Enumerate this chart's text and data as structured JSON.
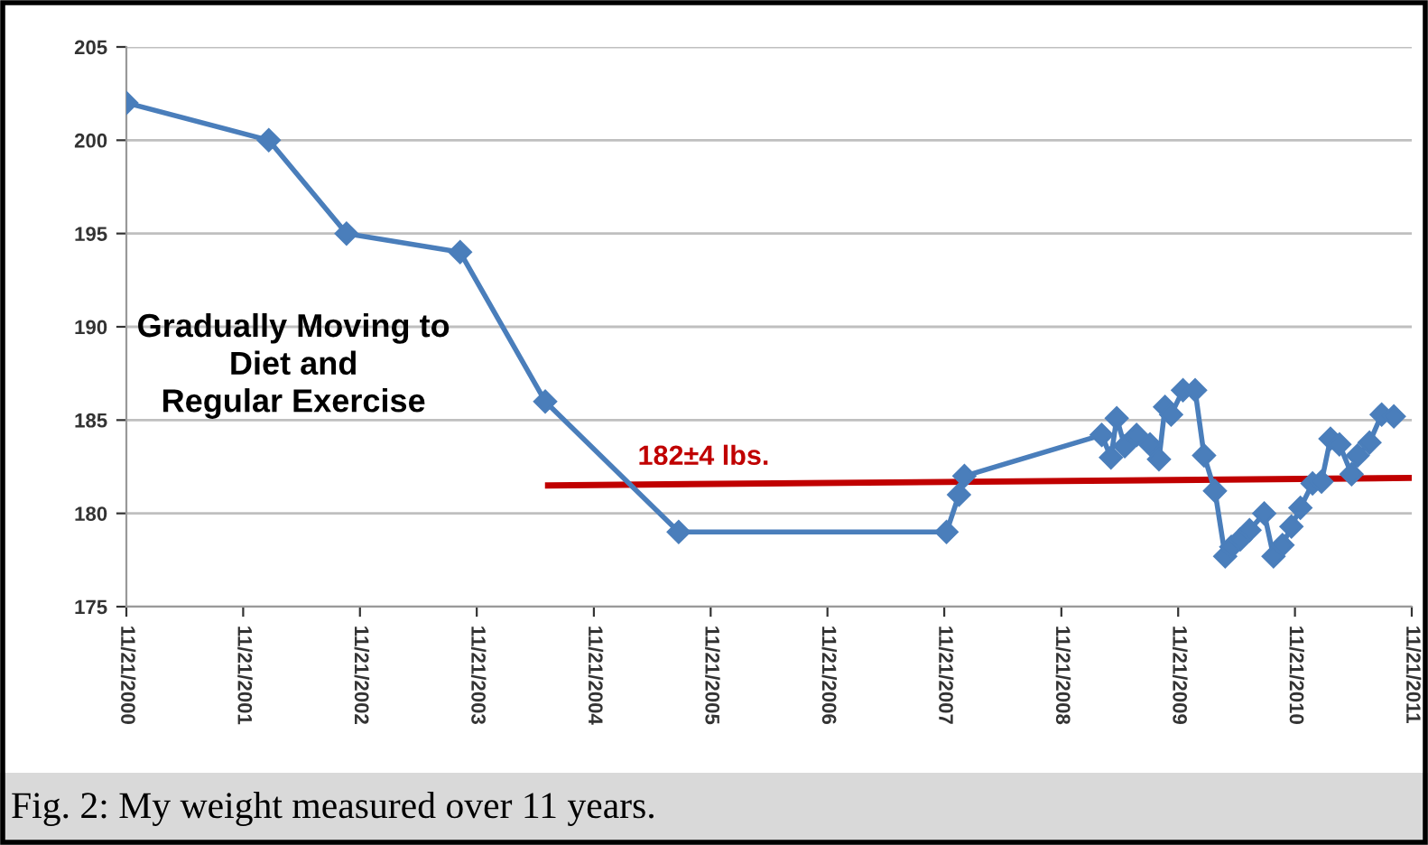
{
  "chart_data": {
    "type": "line",
    "x": [
      "2000-11-21",
      "2002-02-09",
      "2002-10-10",
      "2003-09-30",
      "2004-06-22",
      "2005-08-13",
      "2007-11-28",
      "2008-01-06",
      "2008-01-23",
      "2009-03-27",
      "2009-04-25",
      "2009-05-13",
      "2009-06-07",
      "2009-07-14",
      "2009-08-25",
      "2009-09-22",
      "2009-10-11",
      "2009-10-30",
      "2009-12-06",
      "2010-01-13",
      "2010-02-10",
      "2010-03-16",
      "2010-04-17",
      "2010-05-06",
      "2010-06-03",
      "2010-07-02",
      "2010-08-17",
      "2010-09-15",
      "2010-10-13",
      "2010-11-10",
      "2010-12-08",
      "2011-01-15",
      "2011-02-12",
      "2011-03-12",
      "2011-04-09",
      "2011-05-17",
      "2011-06-05",
      "2011-07-12",
      "2011-08-19",
      "2011-09-26"
    ],
    "series": [
      {
        "color": "#4a7ebb",
        "values": [
          202,
          200,
          195,
          194,
          186,
          179,
          179,
          181,
          182,
          184.2,
          183.0,
          185.1,
          183.6,
          184.2,
          183.7,
          182.9,
          185.7,
          185.3,
          186.6,
          186.6,
          183.1,
          181.2,
          177.7,
          178.2,
          178.6,
          179.1,
          180.0,
          177.7,
          178.3,
          179.3,
          180.3,
          181.6,
          181.7,
          184.0,
          183.7,
          182.1,
          183.1,
          183.8,
          185.3,
          185.2
        ]
      },
      {
        "name": "182±4 lbs.",
        "color": "#c00000",
        "type": "line",
        "marker": "none",
        "x": [
          "2004-07-01",
          "2011-11-21"
        ],
        "values": [
          181.5,
          181.9
        ]
      }
    ],
    "marker": "diamond",
    "line_style": "solid",
    "grid": "y",
    "ylim": [
      175,
      205
    ],
    "yticks": [
      175,
      180,
      185,
      190,
      195,
      200,
      205
    ],
    "xlim": [
      "2000-11-21",
      "2011-11-21"
    ],
    "xticks": [
      {
        "value": "2000-11-21",
        "label": "11/21/2000"
      },
      {
        "value": "2001-11-21",
        "label": "11/21/2001"
      },
      {
        "value": "2002-11-21",
        "label": "11/21/2002"
      },
      {
        "value": "2003-11-21",
        "label": "11/21/2003"
      },
      {
        "value": "2004-11-21",
        "label": "11/21/2004"
      },
      {
        "value": "2005-11-21",
        "label": "11/21/2005"
      },
      {
        "value": "2006-11-21",
        "label": "11/21/2006"
      },
      {
        "value": "2007-11-21",
        "label": "11/21/2007"
      },
      {
        "value": "2008-11-21",
        "label": "11/21/2008"
      },
      {
        "value": "2009-11-21",
        "label": "11/21/2009"
      },
      {
        "value": "2010-11-21",
        "label": "11/21/2010"
      },
      {
        "value": "2011-11-21",
        "label": "11/21/2011"
      }
    ],
    "annotations": [
      "Gradually Moving to\nDiet and\nRegular Exercise",
      "Fig. 2: My weight measured over 11 years."
    ]
  }
}
